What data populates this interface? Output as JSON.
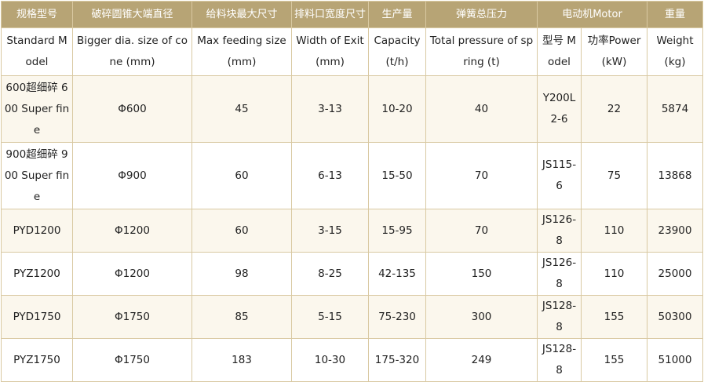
{
  "header_cn": {
    "model": "规格型号",
    "cone": "破碎圆锥大端直径",
    "feed": "给料块最大尺寸",
    "exit": "排料口宽度尺寸",
    "capacity": "生产量",
    "spring": "弹簧总压力",
    "motor": "电动机Motor",
    "weight": "重量"
  },
  "header_en": {
    "model": "Standard Model",
    "cone": "Bigger dia. size of cone (mm)",
    "feed": "Max feeding size (mm)",
    "exit": "Width of Exit (mm)",
    "capacity": "Capacity (t/h)",
    "spring": "Total pressure of spring (t)",
    "motor_model": "型号 Model",
    "motor_power": "功率Power (kW)",
    "weight": "Weight (kg)"
  },
  "rows": [
    {
      "model": "600超细碎 600 Super fine",
      "cone": "Φ600",
      "feed": "45",
      "exit": "3-13",
      "capacity": "10-20",
      "spring": "40",
      "motor_model": "Y200L2-6",
      "power": "22",
      "weight": "5874"
    },
    {
      "model": "900超细碎 900 Super fine",
      "cone": "Φ900",
      "feed": "60",
      "exit": "6-13",
      "capacity": "15-50",
      "spring": "70",
      "motor_model": "JS115-6",
      "power": "75",
      "weight": "13868"
    },
    {
      "model": "PYD1200",
      "cone": "Φ1200",
      "feed": "60",
      "exit": "3-15",
      "capacity": "15-95",
      "spring": "70",
      "motor_model": "JS126-8",
      "power": "110",
      "weight": "23900"
    },
    {
      "model": "PYZ1200",
      "cone": "Φ1200",
      "feed": "98",
      "exit": "8-25",
      "capacity": "42-135",
      "spring": "150",
      "motor_model": "JS126-8",
      "power": "110",
      "weight": "25000"
    },
    {
      "model": "PYD1750",
      "cone": "Φ1750",
      "feed": "85",
      "exit": "5-15",
      "capacity": "75-230",
      "spring": "300",
      "motor_model": "JS128-8",
      "power": "155",
      "weight": "50300"
    },
    {
      "model": "PYZ1750",
      "cone": "Φ1750",
      "feed": "183",
      "exit": "10-30",
      "capacity": "175-320",
      "spring": "249",
      "motor_model": "JS128-8",
      "power": "155",
      "weight": "51000"
    }
  ]
}
